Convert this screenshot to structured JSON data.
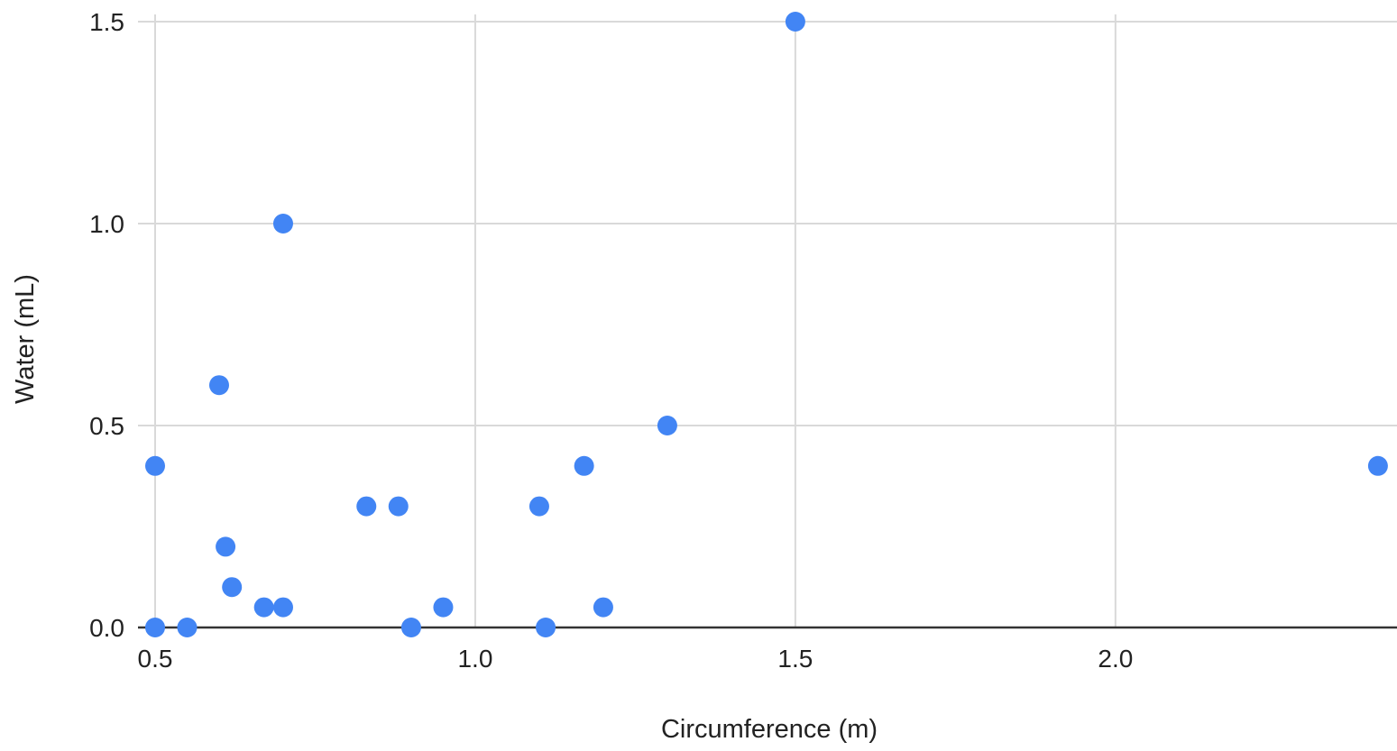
{
  "chart_data": {
    "type": "scatter",
    "xlabel": "Circumference (m)",
    "ylabel": "Water (mL)",
    "xlim": [
      0.5,
      2.42
    ],
    "ylim": [
      0.0,
      1.5
    ],
    "x_ticks": [
      0.5,
      1.0,
      1.5,
      2.0
    ],
    "x_tick_labels": [
      "0.5",
      "1.0",
      "1.5",
      "2.0"
    ],
    "y_ticks": [
      0.0,
      0.5,
      1.0,
      1.5
    ],
    "y_tick_labels": [
      "0.0",
      "0.5",
      "1.0",
      "1.5"
    ],
    "grid": true,
    "colors": {
      "point": "#4285f4",
      "grid": "#d9d9d9",
      "baseline": "#333333"
    },
    "series": [
      {
        "points": [
          {
            "x": 0.5,
            "y": 0.4
          },
          {
            "x": 0.5,
            "y": 0.0
          },
          {
            "x": 0.55,
            "y": 0.0
          },
          {
            "x": 0.6,
            "y": 0.6
          },
          {
            "x": 0.61,
            "y": 0.2
          },
          {
            "x": 0.62,
            "y": 0.1
          },
          {
            "x": 0.67,
            "y": 0.05
          },
          {
            "x": 0.7,
            "y": 0.05
          },
          {
            "x": 0.7,
            "y": 1.0
          },
          {
            "x": 0.83,
            "y": 0.3
          },
          {
            "x": 0.88,
            "y": 0.3
          },
          {
            "x": 0.9,
            "y": 0.0
          },
          {
            "x": 0.95,
            "y": 0.05
          },
          {
            "x": 1.1,
            "y": 0.3
          },
          {
            "x": 1.11,
            "y": 0.0
          },
          {
            "x": 1.17,
            "y": 0.4
          },
          {
            "x": 1.2,
            "y": 0.05
          },
          {
            "x": 1.3,
            "y": 0.5
          },
          {
            "x": 1.5,
            "y": 1.5
          },
          {
            "x": 2.41,
            "y": 0.4
          }
        ]
      }
    ]
  }
}
